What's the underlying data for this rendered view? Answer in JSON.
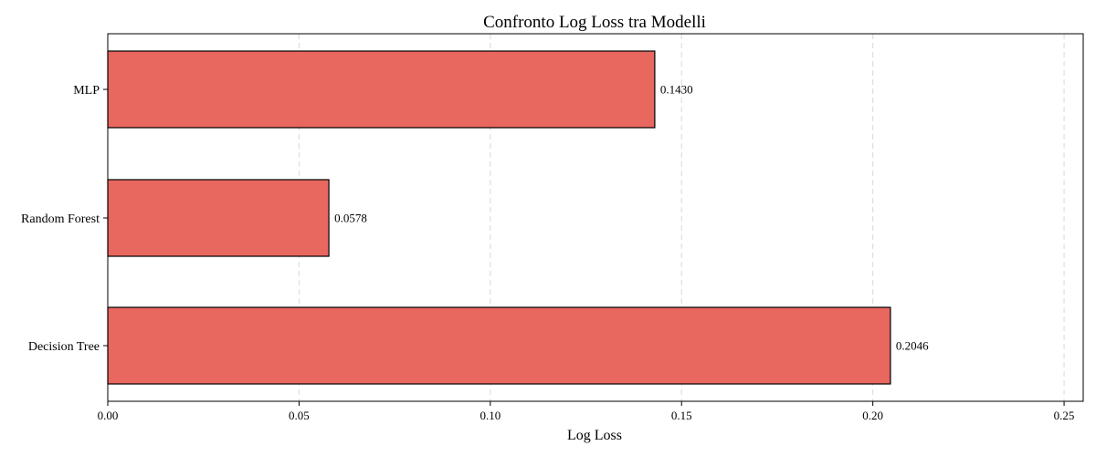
{
  "chart_data": {
    "type": "bar",
    "orientation": "horizontal",
    "title": "Confronto Log Loss tra Modelli",
    "xlabel": "Log Loss",
    "ylabel": "",
    "xlim": [
      0,
      0.255
    ],
    "x_ticks": [
      0.0,
      0.05,
      0.1,
      0.15,
      0.2,
      0.25
    ],
    "x_tick_labels": [
      "0.00",
      "0.05",
      "0.10",
      "0.15",
      "0.20",
      "0.25"
    ],
    "categories": [
      "MLP",
      "Random Forest",
      "Decision Tree"
    ],
    "values": [
      0.143,
      0.0578,
      0.2046
    ],
    "value_labels": [
      "0.1430",
      "0.0578",
      "0.2046"
    ],
    "bar_color": "#e8675e",
    "grid": "x-dashed",
    "legend": "none"
  }
}
